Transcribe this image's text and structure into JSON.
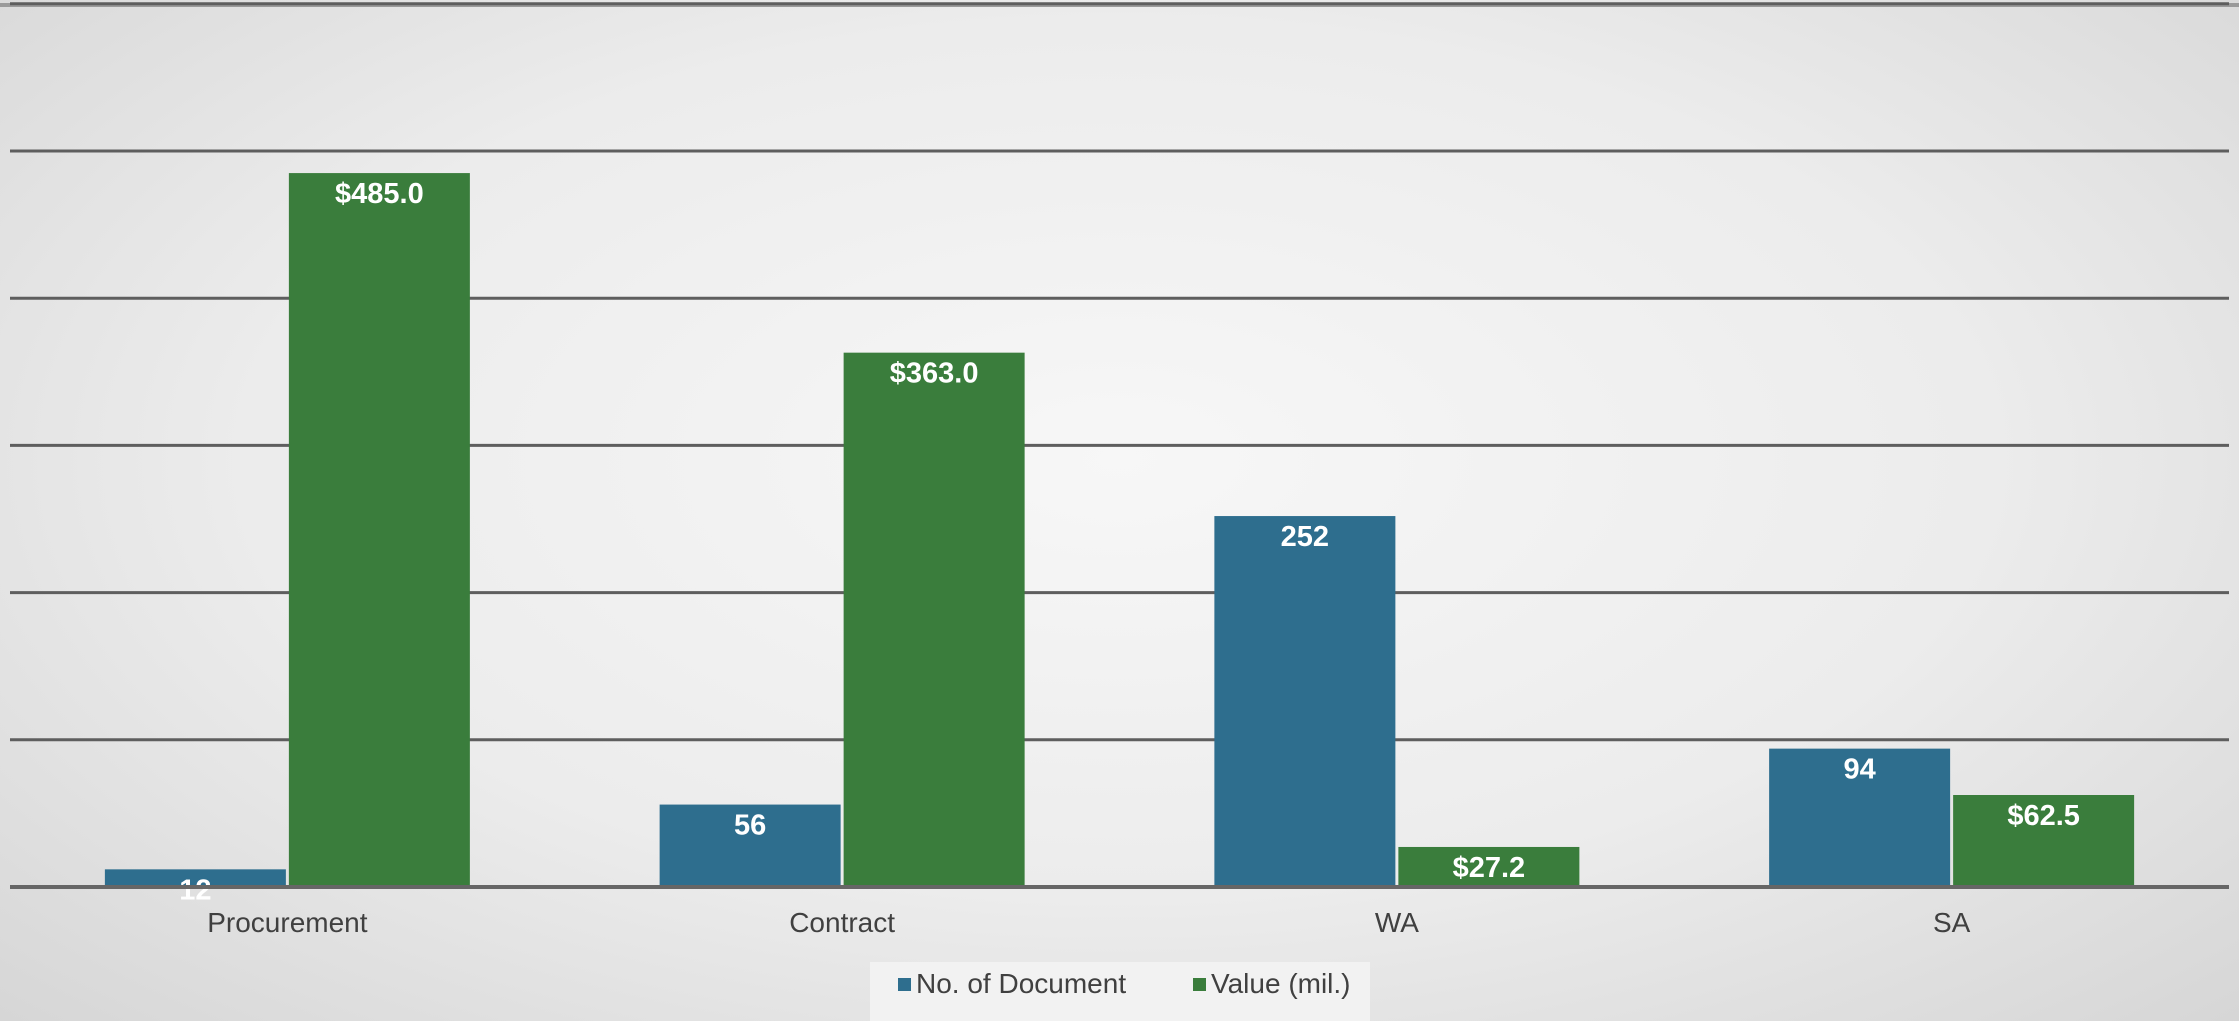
{
  "chart_data": {
    "type": "bar",
    "categories": [
      "Procurement",
      "Contract",
      "WA",
      "SA"
    ],
    "series": [
      {
        "name": "No. of Document",
        "values": [
          12,
          56,
          252,
          94
        ],
        "labels": [
          "12",
          "56",
          "252",
          "94"
        ],
        "color": "#2e6e8e"
      },
      {
        "name": "Value (mil.)",
        "values": [
          485.0,
          363.0,
          27.2,
          62.5
        ],
        "labels": [
          "$485.0",
          "$363.0",
          "$27.2",
          "$62.5"
        ],
        "color": "#3a7d3c"
      }
    ],
    "ylim": [
      0,
      600
    ],
    "grid": true,
    "legend_position": "bottom"
  }
}
